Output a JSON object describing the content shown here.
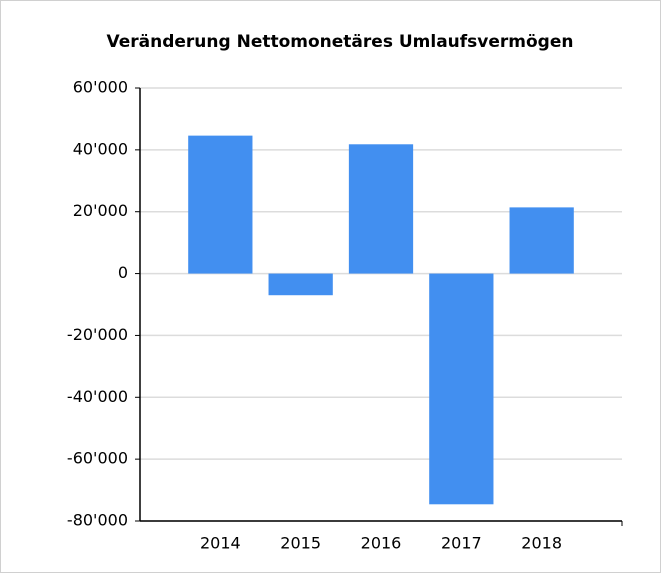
{
  "chart_data": {
    "type": "bar",
    "title": "Veränderung Nettomonetäres Umlaufsvermögen",
    "categories": [
      "2014",
      "2015",
      "2016",
      "2017",
      "2018"
    ],
    "values": [
      44600,
      -7000,
      41800,
      -74600,
      21400
    ],
    "color": "#428ff0",
    "ylim": [
      -80000,
      60000
    ],
    "yticks": [
      {
        "value": -80000,
        "label": "-80'000"
      },
      {
        "value": -60000,
        "label": "-60'000"
      },
      {
        "value": -40000,
        "label": "-40'000"
      },
      {
        "value": -20000,
        "label": "-20'000"
      },
      0,
      {
        "value": 20000,
        "label": "20'000"
      },
      {
        "value": 40000,
        "label": "40'000"
      },
      {
        "value": 60000,
        "label": "60'000"
      }
    ],
    "grid": true
  }
}
